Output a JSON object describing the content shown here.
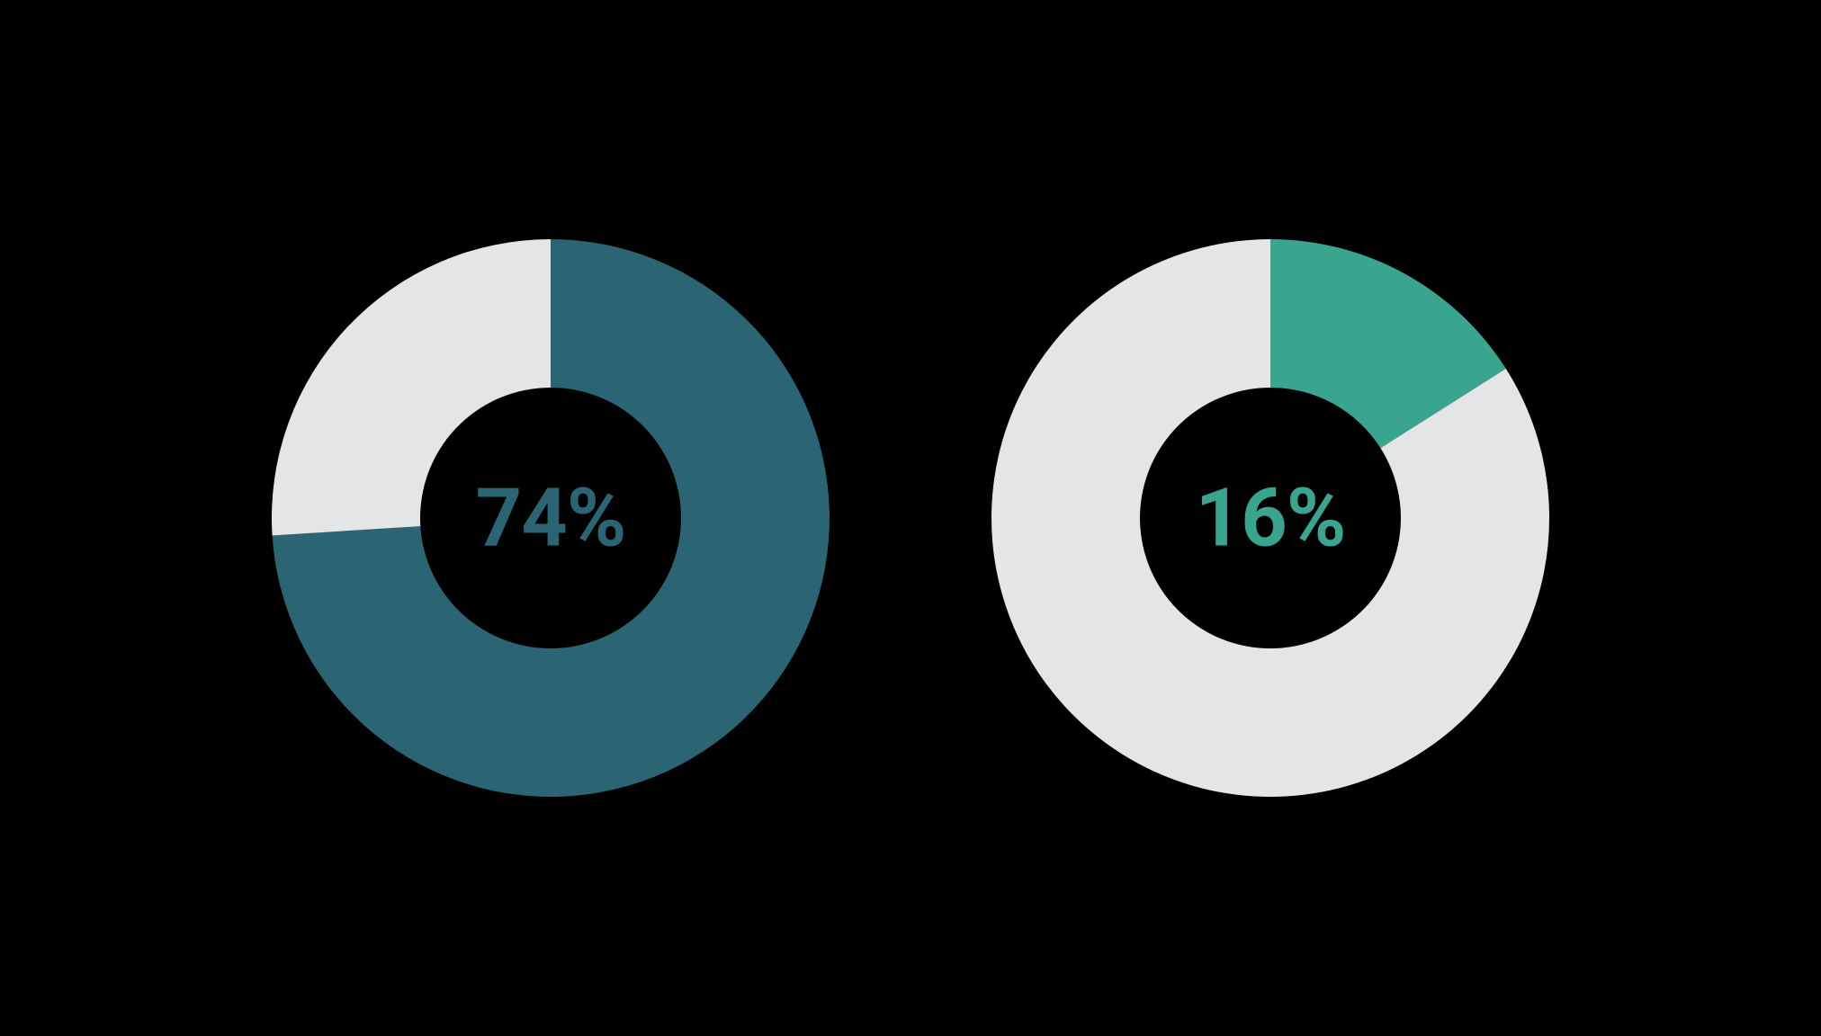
{
  "background_color": "#000000",
  "charts": [
    {
      "type": "donut",
      "value": 74,
      "label": "74%",
      "primary_color": "#2b6574",
      "track_color": "#e3e5e6",
      "text_color": "#2b6574",
      "outer_radius": 310,
      "inner_radius": 145,
      "label_fontsize": 90,
      "start_angle_deg": 0
    },
    {
      "type": "donut",
      "value": 16,
      "label": "16%",
      "primary_color": "#3aa58f",
      "track_color": "#e3e5e6",
      "text_color": "#3aa58f",
      "outer_radius": 310,
      "inner_radius": 145,
      "label_fontsize": 90,
      "start_angle_deg": 0
    }
  ]
}
